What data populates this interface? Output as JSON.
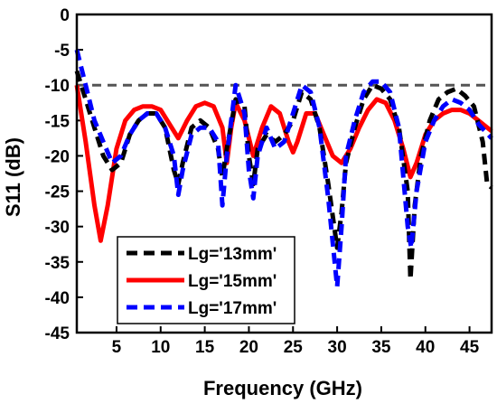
{
  "chart_data": {
    "type": "line",
    "xlabel": "Frequency (GHz)",
    "ylabel": "S11 (dB)",
    "xlim": [
      0.5,
      47.5
    ],
    "ylim": [
      -45,
      0
    ],
    "x_ticks": [
      5,
      10,
      15,
      20,
      25,
      30,
      35,
      40,
      45
    ],
    "x_tick_labels": [
      "5",
      "10",
      "15",
      "20",
      "25",
      "30",
      "35",
      "40",
      "45"
    ],
    "y_ticks": [
      0,
      -5,
      -10,
      -15,
      -20,
      -25,
      -30,
      -35,
      -40,
      -45
    ],
    "y_tick_labels": [
      "0",
      "-5",
      "-10",
      "-15",
      "-20",
      "-25",
      "-30",
      "-35",
      "-40",
      "-45"
    ],
    "grid": false,
    "legend_position": "bottom-left",
    "reference_line": {
      "y": -10,
      "color": "#555555",
      "style": "dashed"
    },
    "series": [
      {
        "name": "Lg='13mm'",
        "color": "#000000",
        "style": "dashed",
        "points": [
          [
            0.5,
            -8
          ],
          [
            1.5,
            -12
          ],
          [
            2.5,
            -16
          ],
          [
            3.5,
            -20
          ],
          [
            4.5,
            -22
          ],
          [
            5.5,
            -21
          ],
          [
            6.5,
            -17
          ],
          [
            7.5,
            -15
          ],
          [
            8.5,
            -14
          ],
          [
            9.5,
            -14
          ],
          [
            10.5,
            -16
          ],
          [
            11.5,
            -22
          ],
          [
            12,
            -24
          ],
          [
            12.5,
            -21
          ],
          [
            13.5,
            -16
          ],
          [
            14.5,
            -15
          ],
          [
            15.5,
            -16
          ],
          [
            16.5,
            -19
          ],
          [
            17,
            -23
          ],
          [
            17.5,
            -19
          ],
          [
            18.5,
            -12
          ],
          [
            19.5,
            -13
          ],
          [
            20,
            -20
          ],
          [
            20.5,
            -24
          ],
          [
            21,
            -19
          ],
          [
            22,
            -17
          ],
          [
            23,
            -18
          ],
          [
            24,
            -17
          ],
          [
            25,
            -15
          ],
          [
            26,
            -11
          ],
          [
            27,
            -12
          ],
          [
            28,
            -16
          ],
          [
            29,
            -24
          ],
          [
            30,
            -33
          ],
          [
            30.5,
            -28
          ],
          [
            31,
            -21
          ],
          [
            32,
            -16
          ],
          [
            33,
            -12
          ],
          [
            34,
            -10
          ],
          [
            35,
            -10.5
          ],
          [
            36,
            -12
          ],
          [
            37,
            -16
          ],
          [
            38,
            -25
          ],
          [
            38.3,
            -37.5
          ],
          [
            38.8,
            -27
          ],
          [
            39.5,
            -20
          ],
          [
            40.5,
            -15
          ],
          [
            41.5,
            -12
          ],
          [
            42.5,
            -11
          ],
          [
            43.5,
            -10.5
          ],
          [
            44.5,
            -11.5
          ],
          [
            45.5,
            -13
          ],
          [
            46.5,
            -18
          ],
          [
            47,
            -24
          ],
          [
            47.5,
            -24.5
          ]
        ]
      },
      {
        "name": "Lg='15mm'",
        "color": "#ff0000",
        "style": "solid",
        "points": [
          [
            0.5,
            -10
          ],
          [
            1.5,
            -18
          ],
          [
            2.5,
            -27
          ],
          [
            3.2,
            -32
          ],
          [
            4,
            -27
          ],
          [
            5,
            -19
          ],
          [
            6,
            -15
          ],
          [
            7,
            -13.5
          ],
          [
            8,
            -13
          ],
          [
            9,
            -13
          ],
          [
            10,
            -13.5
          ],
          [
            11,
            -15.5
          ],
          [
            12,
            -17.5
          ],
          [
            13,
            -15
          ],
          [
            14,
            -13
          ],
          [
            15,
            -12.5
          ],
          [
            16,
            -13
          ],
          [
            17,
            -16
          ],
          [
            17.5,
            -21
          ],
          [
            18,
            -16
          ],
          [
            18.5,
            -12.5
          ],
          [
            19.5,
            -15
          ],
          [
            20.5,
            -20
          ],
          [
            21.5,
            -16
          ],
          [
            22.5,
            -13
          ],
          [
            23.5,
            -14
          ],
          [
            24.5,
            -18
          ],
          [
            25,
            -19.5
          ],
          [
            25.5,
            -18
          ],
          [
            26.5,
            -14
          ],
          [
            27.5,
            -14
          ],
          [
            28.5,
            -17
          ],
          [
            29.5,
            -20
          ],
          [
            30.5,
            -21
          ],
          [
            31.5,
            -19
          ],
          [
            32.5,
            -16
          ],
          [
            33.5,
            -13.5
          ],
          [
            34.5,
            -12
          ],
          [
            35.5,
            -12.5
          ],
          [
            36.5,
            -15
          ],
          [
            37.5,
            -19
          ],
          [
            38.3,
            -23
          ],
          [
            39,
            -21
          ],
          [
            40,
            -17
          ],
          [
            41,
            -15
          ],
          [
            42,
            -14
          ],
          [
            43,
            -13.5
          ],
          [
            44,
            -13.5
          ],
          [
            45,
            -14
          ],
          [
            46,
            -15
          ],
          [
            47.5,
            -16.5
          ]
        ]
      },
      {
        "name": "Lg='17mm'",
        "color": "#0000ff",
        "style": "dashed",
        "points": [
          [
            0.5,
            -5
          ],
          [
            1.5,
            -10
          ],
          [
            2.5,
            -15
          ],
          [
            3.5,
            -18
          ],
          [
            4.5,
            -21
          ],
          [
            5.5,
            -20
          ],
          [
            6.5,
            -17
          ],
          [
            7.5,
            -15
          ],
          [
            8.5,
            -14
          ],
          [
            9.5,
            -14
          ],
          [
            10.5,
            -16
          ],
          [
            11.5,
            -20
          ],
          [
            12,
            -25.5
          ],
          [
            12.5,
            -22
          ],
          [
            13.5,
            -17
          ],
          [
            14.5,
            -16
          ],
          [
            15.5,
            -16
          ],
          [
            16.5,
            -18
          ],
          [
            17,
            -27
          ],
          [
            17.5,
            -20
          ],
          [
            18.5,
            -10
          ],
          [
            19.5,
            -14
          ],
          [
            20,
            -22
          ],
          [
            20.5,
            -26
          ],
          [
            21,
            -20
          ],
          [
            22,
            -16
          ],
          [
            23,
            -19
          ],
          [
            24,
            -18
          ],
          [
            25,
            -14
          ],
          [
            26,
            -10
          ],
          [
            27,
            -11
          ],
          [
            28,
            -16
          ],
          [
            29,
            -26
          ],
          [
            30,
            -38.5
          ],
          [
            30.5,
            -30
          ],
          [
            31,
            -20
          ],
          [
            32,
            -15
          ],
          [
            33,
            -11
          ],
          [
            34,
            -9.5
          ],
          [
            35,
            -9.5
          ],
          [
            36,
            -11
          ],
          [
            37,
            -16
          ],
          [
            38,
            -30
          ],
          [
            38.4,
            -33
          ],
          [
            39,
            -25
          ],
          [
            40,
            -18
          ],
          [
            41,
            -15
          ],
          [
            42,
            -13
          ],
          [
            43,
            -12
          ],
          [
            44,
            -12.5
          ],
          [
            45,
            -13.5
          ],
          [
            46,
            -15.5
          ],
          [
            47.5,
            -17.5
          ]
        ]
      }
    ]
  }
}
